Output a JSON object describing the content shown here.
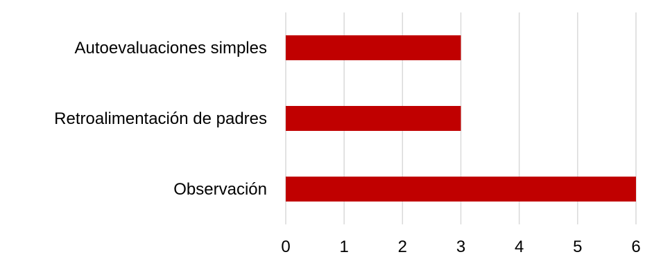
{
  "chart_data": {
    "type": "bar",
    "orientation": "horizontal",
    "categories": [
      "Autoevaluaciones simples",
      "Retroalimentación de padres",
      "Observación"
    ],
    "values": [
      3,
      3,
      6
    ],
    "title": "",
    "xlabel": "",
    "ylabel": "",
    "xlim": [
      0,
      6
    ],
    "x_ticks": [
      "0",
      "1",
      "2",
      "3",
      "4",
      "5",
      "6"
    ],
    "grid": true,
    "legend": "none",
    "colors": {
      "bar": "#c00000",
      "grid": "#d9d9d9"
    }
  }
}
